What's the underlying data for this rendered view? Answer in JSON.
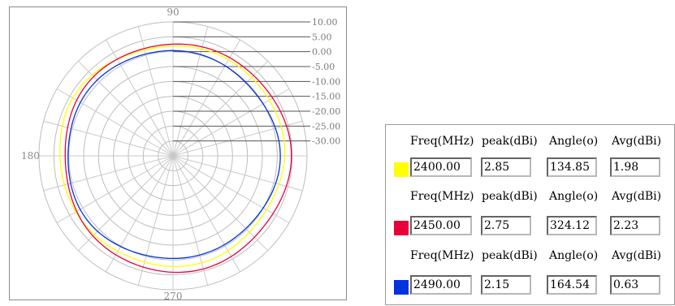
{
  "chart_data": {
    "type": "polar-line",
    "angle_labels": [
      "90",
      "180",
      "270"
    ],
    "radial_ticks": [
      "10.00",
      "5.00",
      "0.00",
      "-5.00",
      "-10.00",
      "-15.00",
      "-20.00",
      "-25.00",
      "-30.00"
    ],
    "rlim": [
      -35,
      10
    ],
    "grid": true,
    "series": [
      {
        "freq_mhz": "2400.00",
        "peak_dbi": "2.85",
        "angle_deg": "134.85",
        "avg_dbi": "1.98",
        "color": "#ffff00",
        "level_db": 1.98
      },
      {
        "freq_mhz": "2450.00",
        "peak_dbi": "2.75",
        "angle_deg": "324.12",
        "avg_dbi": "2.23",
        "color": "#e8003a",
        "level_db": 2.23
      },
      {
        "freq_mhz": "2490.00",
        "peak_dbi": "2.15",
        "angle_deg": "164.54",
        "avg_dbi": "0.63",
        "color": "#0033dd",
        "level_db": 0.63
      }
    ]
  },
  "table": {
    "headers": {
      "freq": "Freq(MHz)",
      "peak": "peak(dBi)",
      "angle": "Angle(o)",
      "avg": "Avg(dBi)"
    },
    "rows": [
      {
        "color": "#ffff00",
        "freq": "2400.00",
        "peak": "2.85",
        "angle": "134.85",
        "avg": "1.98"
      },
      {
        "color": "#e8003a",
        "freq": "2450.00",
        "peak": "2.75",
        "angle": "324.12",
        "avg": "2.23"
      },
      {
        "color": "#0033dd",
        "freq": "2490.00",
        "peak": "2.15",
        "angle": "164.54",
        "avg": "0.63"
      }
    ]
  }
}
